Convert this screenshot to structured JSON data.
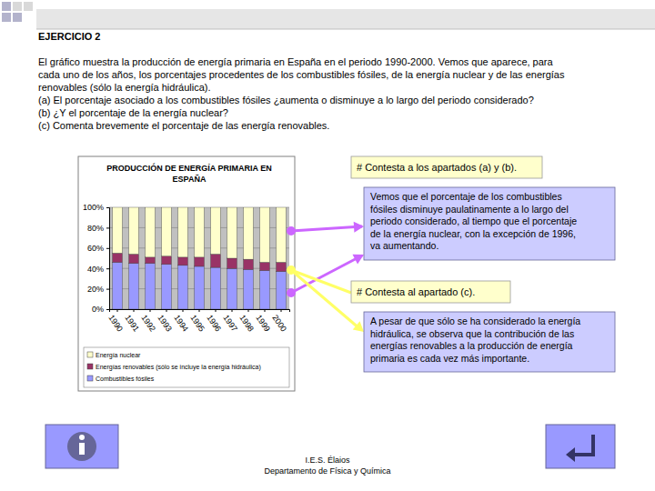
{
  "header": {
    "title": "EJERCICIO 2",
    "lines": [
      "El gráfico muestra la producción de energía primaria en España en el periodo 1990-2000. Vemos que aparece, para",
      "cada uno de los años, los porcentajes procedentes de los combustibles fósiles, de la energía nuclear y de las energías",
      "renovables (sólo la energía hidráulica).",
      "(a) El porcentaje asociado a los combustibles fósiles ¿aumenta o disminuye a lo largo del periodo considerado?",
      "(b) ¿Y el porcentaje de la energía nuclear?",
      "(c) Comenta brevemente el porcentaje de las energía renovables."
    ]
  },
  "chart_data": {
    "type": "bar",
    "stacked": true,
    "grid": true,
    "legend": "bottom",
    "title": [
      "PRODUCCIÓN DE ENERGÍA PRIMARIA EN",
      "ESPAÑA"
    ],
    "categories": [
      "1990",
      "1991",
      "1992",
      "1993",
      "1994",
      "1995",
      "1996",
      "1997",
      "1998",
      "1999",
      "2000"
    ],
    "series": [
      {
        "name": "Energía nuclear",
        "color": "#ffffcc",
        "values": [
          45,
          46,
          49,
          48,
          49,
          49,
          46,
          50,
          51,
          54,
          54
        ]
      },
      {
        "name": "Energías renovables (sólo se incluye la energía hidráulica)",
        "color": "#993366",
        "values": [
          9,
          9,
          6,
          8,
          8,
          9,
          13,
          10,
          10,
          8,
          9
        ]
      },
      {
        "name": "Combustibles fósiles",
        "color": "#9999ff",
        "values": [
          46,
          45,
          45,
          44,
          43,
          42,
          41,
          40,
          39,
          38,
          37
        ]
      }
    ],
    "ylim": [
      0,
      100
    ],
    "yticks": [
      {
        "value": 0,
        "label": "0%"
      },
      {
        "value": 20,
        "label": "20%"
      },
      {
        "value": 40,
        "label": "40%"
      },
      {
        "value": 60,
        "label": "60%"
      },
      {
        "value": 80,
        "label": "80%"
      },
      {
        "value": 100,
        "label": "100%"
      }
    ]
  },
  "prompts": [
    "# Contesta a los apartados (a) y (b).",
    "# Contesta al apartado (c)."
  ],
  "answers": [
    [
      "Vemos que el porcentaje de los combustibles",
      "fósiles disminuye paulatinamente a lo largo del",
      "periodo considerado, al tiempo que el porcentaje",
      "de la energía nuclear, con la excepción de 1996,",
      "va aumentando."
    ],
    [
      "A pesar de que sólo se ha considerado la energía",
      "hidráulica, se observa que la contribución de las",
      "energías renovables a la producción de energía",
      "primaria es cada vez más importante."
    ]
  ],
  "footer": {
    "lines": [
      "I.E.S. Élaios",
      "Departamento de Física y Química"
    ]
  }
}
